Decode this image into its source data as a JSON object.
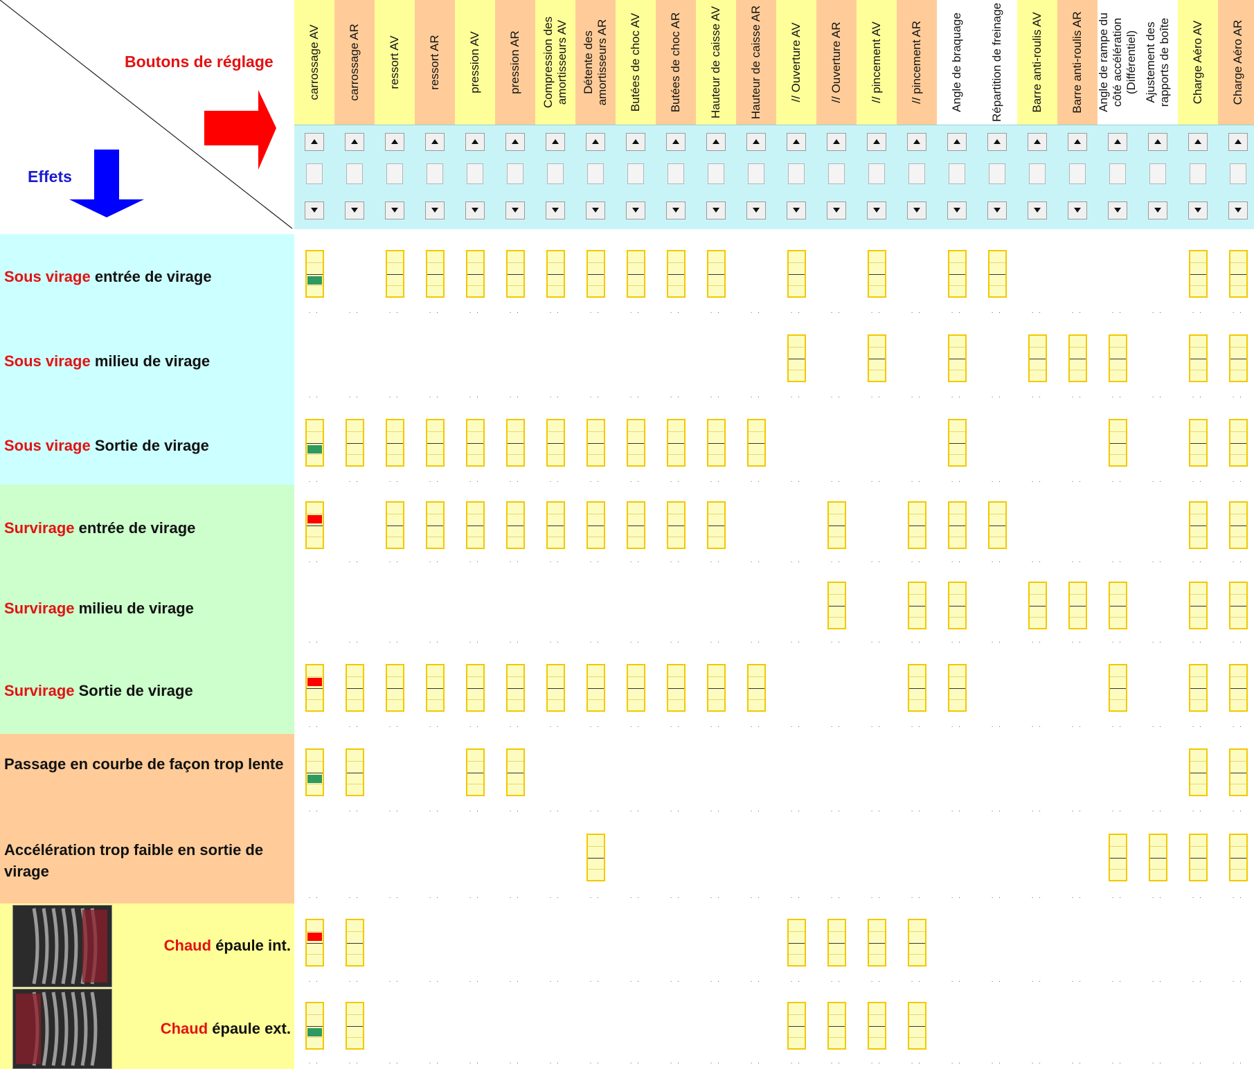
{
  "header": {
    "boutons_label": "Boutons de réglage",
    "effets_label": "Effets"
  },
  "colors": {
    "header_yellow": "#ffff99",
    "header_peach": "#ffcc99",
    "spinner_bg": "#c9f4f7",
    "band_cyan": "#ccffff",
    "band_green": "#ccffcc",
    "band_peach": "#ffcc99",
    "band_yellow": "#ffff99",
    "indicator_green": "#2e9a5f",
    "indicator_red": "#ff0000",
    "box_border": "#f2c800",
    "box_fill": "#fdfcc0",
    "arrow_right": "#ff0000",
    "arrow_down": "#0000ff"
  },
  "columns": [
    {
      "label": "carrossage AV",
      "tone": "yellow"
    },
    {
      "label": "carrossage AR",
      "tone": "peach"
    },
    {
      "label": "ressort AV",
      "tone": "yellow"
    },
    {
      "label": "ressort AR",
      "tone": "peach"
    },
    {
      "label": "pression AV",
      "tone": "yellow"
    },
    {
      "label": "pression AR",
      "tone": "peach"
    },
    {
      "label": "Compression des amortisseurs AV",
      "tone": "yellow"
    },
    {
      "label": "Détente des amortisseurs AR",
      "tone": "peach"
    },
    {
      "label": "Butées de choc AV",
      "tone": "yellow"
    },
    {
      "label": "Butées de choc AR",
      "tone": "peach"
    },
    {
      "label": "Hauteur de caisse AV",
      "tone": "yellow"
    },
    {
      "label": "Hauteur de caisse AR",
      "tone": "peach"
    },
    {
      "label": "// Ouverture AV",
      "tone": "yellow"
    },
    {
      "label": "// Ouverture AR",
      "tone": "peach"
    },
    {
      "label": "// pincement AV",
      "tone": "yellow"
    },
    {
      "label": "// pincement AR",
      "tone": "peach"
    },
    {
      "label": "Angle de braquage",
      "tone": "white"
    },
    {
      "label": "Répartition de freinage",
      "tone": "white"
    },
    {
      "label": "Barre anti-roulis AV",
      "tone": "yellow"
    },
    {
      "label": "Barre anti-roulis AR",
      "tone": "peach"
    },
    {
      "label": "Angle de rampe du côté accélération (Différentiel)",
      "tone": "white"
    },
    {
      "label": "Ajustement des rapports de boîte",
      "tone": "white"
    },
    {
      "label": "Charge Aéro AV",
      "tone": "yellow"
    },
    {
      "label": "Charge Aéro AR",
      "tone": "peach"
    }
  ],
  "rows": [
    {
      "label_kw": "Sous virage",
      "label_rest": " entrée de virage",
      "band": "cyan",
      "tyre": false,
      "boxes": [
        0,
        2,
        3,
        4,
        5,
        6,
        7,
        8,
        9,
        10,
        12,
        14,
        16,
        17,
        22,
        23
      ],
      "indicator": {
        "col": 0,
        "color": "green"
      }
    },
    {
      "label_kw": "Sous virage",
      "label_rest": " milieu de virage",
      "band": "cyan",
      "tyre": false,
      "boxes": [
        12,
        14,
        16,
        18,
        19,
        20,
        22,
        23
      ],
      "indicator": null
    },
    {
      "label_kw": "Sous virage",
      "label_rest": " Sortie de virage",
      "band": "cyan",
      "tyre": false,
      "boxes": [
        0,
        1,
        2,
        3,
        4,
        5,
        6,
        7,
        8,
        9,
        10,
        11,
        16,
        20,
        22,
        23
      ],
      "indicator": {
        "col": 0,
        "color": "green"
      }
    },
    {
      "label_kw": "Survirage",
      "label_rest": " entrée de virage",
      "band": "green",
      "tyre": false,
      "boxes": [
        0,
        2,
        3,
        4,
        5,
        6,
        7,
        8,
        9,
        10,
        13,
        15,
        16,
        17,
        22,
        23
      ],
      "indicator": {
        "col": 0,
        "color": "red"
      }
    },
    {
      "label_kw": "Survirage",
      "label_rest": " milieu de virage",
      "band": "green",
      "tyre": false,
      "boxes": [
        13,
        15,
        16,
        18,
        19,
        20,
        22,
        23
      ],
      "indicator": null
    },
    {
      "label_kw": "Survirage",
      "label_rest": " Sortie de virage",
      "band": "green",
      "tyre": false,
      "boxes": [
        0,
        1,
        2,
        3,
        4,
        5,
        6,
        7,
        8,
        9,
        10,
        11,
        15,
        16,
        20,
        22,
        23
      ],
      "indicator": {
        "col": 0,
        "color": "red"
      }
    },
    {
      "label_kw": "",
      "label_rest": "Passage en courbe de façon trop lente",
      "band": "peach",
      "tyre": false,
      "boxes": [
        0,
        1,
        4,
        5,
        22,
        23
      ],
      "indicator": {
        "col": 0,
        "color": "green"
      }
    },
    {
      "label_kw": "",
      "label_rest": "Accélération trop faible en sortie de virage",
      "band": "peach",
      "tyre": false,
      "boxes": [
        7,
        20,
        21,
        22,
        23
      ],
      "indicator": null
    },
    {
      "label_kw": "Chaud",
      "label_rest": " épaule int.",
      "band": "yellow",
      "tyre": true,
      "boxes": [
        0,
        1,
        12,
        13,
        14,
        15
      ],
      "indicator": {
        "col": 0,
        "color": "red"
      }
    },
    {
      "label_kw": "Chaud",
      "label_rest": " épaule ext.",
      "band": "yellow",
      "tyre": true,
      "boxes": [
        0,
        1,
        12,
        13,
        14,
        15
      ],
      "indicator": {
        "col": 0,
        "color": "green"
      }
    }
  ]
}
